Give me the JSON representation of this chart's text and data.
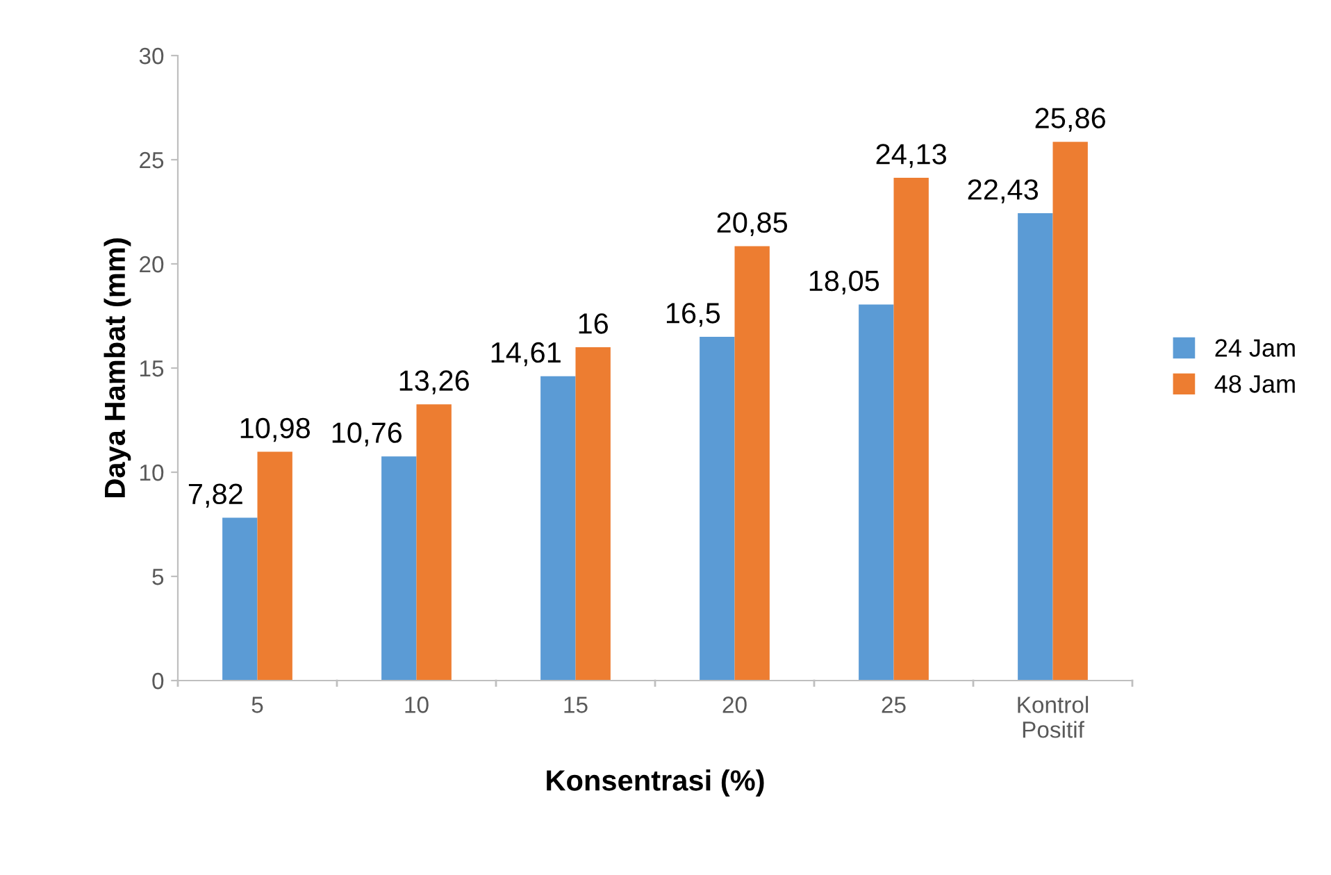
{
  "chart_data": {
    "type": "bar",
    "xlabel": "Konsentrasi (%)",
    "ylabel": "Daya Hambat (mm)",
    "categories": [
      "5",
      "10",
      "15",
      "20",
      "25",
      "Kontrol\nPositif"
    ],
    "series": [
      {
        "name": "24 Jam",
        "color": "#5b9bd5",
        "values": [
          7.82,
          10.76,
          14.61,
          16.5,
          18.05,
          22.43
        ],
        "value_labels": [
          "7,82",
          "10,76",
          "14,61",
          "16,5",
          "18,05",
          "22,43"
        ]
      },
      {
        "name": "48 Jam",
        "color": "#ed7d31",
        "values": [
          10.98,
          13.26,
          16,
          20.85,
          24.13,
          25.86
        ],
        "value_labels": [
          "10,98",
          "13,26",
          "16",
          "20,85",
          "24,13",
          "25,86"
        ]
      }
    ],
    "ylim": [
      0,
      30
    ],
    "yticks": [
      0,
      5,
      10,
      15,
      20,
      25,
      30
    ],
    "grid": false,
    "legend": "right"
  }
}
